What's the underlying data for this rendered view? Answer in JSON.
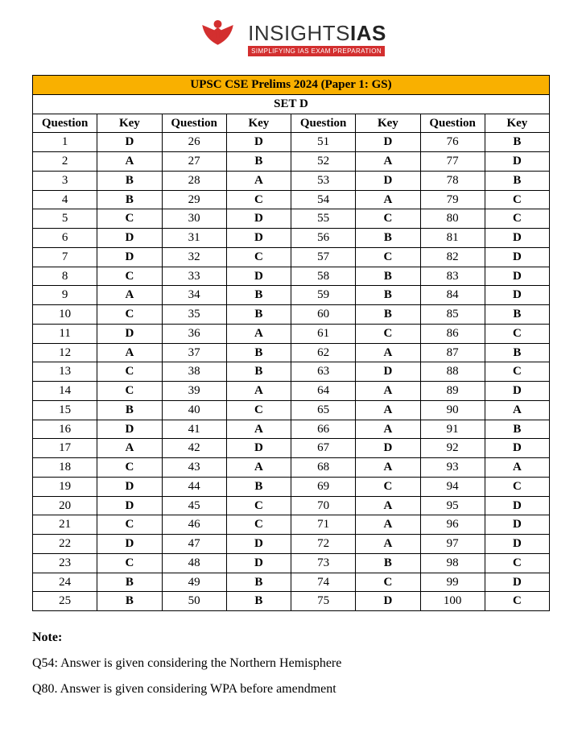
{
  "brand": {
    "name_light": "INSIGHTS",
    "name_bold": "IAS",
    "tagline": "SIMPLIFYING IAS EXAM PREPARATION",
    "accent_color": "#d32f2f"
  },
  "table": {
    "title": "UPSC CSE Prelims 2024 (Paper 1: GS)",
    "set_label": "SET D",
    "col_question": "Question",
    "col_key": "Key",
    "title_bg": "#f9b000",
    "border_color": "#000000",
    "rows": [
      {
        "q1": "1",
        "k1": "D",
        "q2": "26",
        "k2": "D",
        "q3": "51",
        "k3": "D",
        "q4": "76",
        "k4": "B"
      },
      {
        "q1": "2",
        "k1": "A",
        "q2": "27",
        "k2": "B",
        "q3": "52",
        "k3": "A",
        "q4": "77",
        "k4": "D"
      },
      {
        "q1": "3",
        "k1": "B",
        "q2": "28",
        "k2": "A",
        "q3": "53",
        "k3": "D",
        "q4": "78",
        "k4": "B"
      },
      {
        "q1": "4",
        "k1": "B",
        "q2": "29",
        "k2": "C",
        "q3": "54",
        "k3": "A",
        "q4": "79",
        "k4": "C"
      },
      {
        "q1": "5",
        "k1": "C",
        "q2": "30",
        "k2": "D",
        "q3": "55",
        "k3": "C",
        "q4": "80",
        "k4": "C"
      },
      {
        "q1": "6",
        "k1": "D",
        "q2": "31",
        "k2": "D",
        "q3": "56",
        "k3": "B",
        "q4": "81",
        "k4": "D"
      },
      {
        "q1": "7",
        "k1": "D",
        "q2": "32",
        "k2": "C",
        "q3": "57",
        "k3": "C",
        "q4": "82",
        "k4": "D"
      },
      {
        "q1": "8",
        "k1": "C",
        "q2": "33",
        "k2": "D",
        "q3": "58",
        "k3": "B",
        "q4": "83",
        "k4": "D"
      },
      {
        "q1": "9",
        "k1": "A",
        "q2": "34",
        "k2": "B",
        "q3": "59",
        "k3": "B",
        "q4": "84",
        "k4": "D"
      },
      {
        "q1": "10",
        "k1": "C",
        "q2": "35",
        "k2": "B",
        "q3": "60",
        "k3": "B",
        "q4": "85",
        "k4": "B"
      },
      {
        "q1": "11",
        "k1": "D",
        "q2": "36",
        "k2": "A",
        "q3": "61",
        "k3": "C",
        "q4": "86",
        "k4": "C"
      },
      {
        "q1": "12",
        "k1": "A",
        "q2": "37",
        "k2": "B",
        "q3": "62",
        "k3": "A",
        "q4": "87",
        "k4": "B"
      },
      {
        "q1": "13",
        "k1": "C",
        "q2": "38",
        "k2": "B",
        "q3": "63",
        "k3": "D",
        "q4": "88",
        "k4": "C"
      },
      {
        "q1": "14",
        "k1": "C",
        "q2": "39",
        "k2": "A",
        "q3": "64",
        "k3": "A",
        "q4": "89",
        "k4": "D"
      },
      {
        "q1": "15",
        "k1": "B",
        "q2": "40",
        "k2": "C",
        "q3": "65",
        "k3": "A",
        "q4": "90",
        "k4": "A"
      },
      {
        "q1": "16",
        "k1": "D",
        "q2": "41",
        "k2": "A",
        "q3": "66",
        "k3": "A",
        "q4": "91",
        "k4": "B"
      },
      {
        "q1": "17",
        "k1": "A",
        "q2": "42",
        "k2": "D",
        "q3": "67",
        "k3": "D",
        "q4": "92",
        "k4": "D"
      },
      {
        "q1": "18",
        "k1": "C",
        "q2": "43",
        "k2": "A",
        "q3": "68",
        "k3": "A",
        "q4": "93",
        "k4": "A"
      },
      {
        "q1": "19",
        "k1": "D",
        "q2": "44",
        "k2": "B",
        "q3": "69",
        "k3": "C",
        "q4": "94",
        "k4": "C"
      },
      {
        "q1": "20",
        "k1": "D",
        "q2": "45",
        "k2": "C",
        "q3": "70",
        "k3": "A",
        "q4": "95",
        "k4": "D"
      },
      {
        "q1": "21",
        "k1": "C",
        "q2": "46",
        "k2": "C",
        "q3": "71",
        "k3": "A",
        "q4": "96",
        "k4": "D"
      },
      {
        "q1": "22",
        "k1": "D",
        "q2": "47",
        "k2": "D",
        "q3": "72",
        "k3": "A",
        "q4": "97",
        "k4": "D"
      },
      {
        "q1": "23",
        "k1": "C",
        "q2": "48",
        "k2": "D",
        "q3": "73",
        "k3": "B",
        "q4": "98",
        "k4": "C"
      },
      {
        "q1": "24",
        "k1": "B",
        "q2": "49",
        "k2": "B",
        "q3": "74",
        "k3": "C",
        "q4": "99",
        "k4": "D"
      },
      {
        "q1": "25",
        "k1": "B",
        "q2": "50",
        "k2": "B",
        "q3": "75",
        "k3": "D",
        "q4": "100",
        "k4": "C"
      }
    ]
  },
  "notes": {
    "heading": "Note:",
    "items": [
      "Q54: Answer is given considering the Northern Hemisphere",
      "Q80. Answer is given considering WPA before amendment"
    ]
  }
}
